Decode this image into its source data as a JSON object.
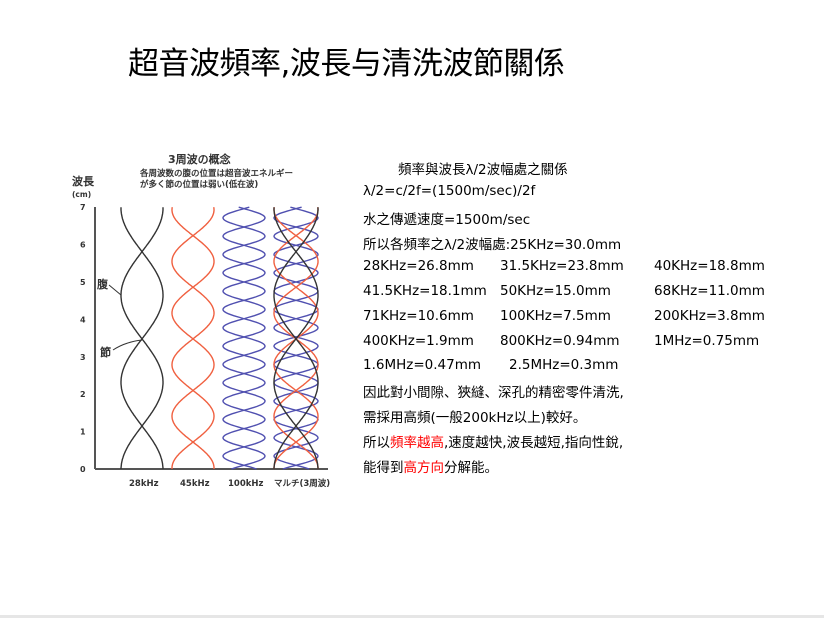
{
  "title": "超音波頻率,波長与清洗波節關係",
  "diagram": {
    "heading": "3周波の概念",
    "sub1": "各周波数の腹の位置は超音波エネルギー",
    "sub2": "が多く節の位置は弱い(低在波)",
    "ylabel": "波長",
    "yunit": "(cm)",
    "yticks": [
      "0",
      "1",
      "2",
      "3",
      "4",
      "5",
      "6",
      "7"
    ],
    "columns": [
      "28kHz",
      "45kHz",
      "100kHz",
      "マルチ(3周波)"
    ],
    "antinode_label": "腹",
    "node_label": "節",
    "colors": {
      "28kHz": "#333333",
      "45kHz": "#f06040",
      "100kHz": "#5050b0"
    }
  },
  "text": {
    "heading": "頻率與波長λ/2波幅處之關係",
    "formula": "λ/2=c/2f=(1500m/sec)/2f",
    "speed": "水之傳遞速度=1500m/sec",
    "intro": "所以各頻率之λ/2波幅處:25KHz=30.0mm",
    "rows": [
      [
        "28KHz=26.8mm",
        "31.5KHz=23.8mm",
        "40KHz=18.8mm"
      ],
      [
        "41.5KHz=18.1mm",
        "50KHz=15.0mm",
        "68KHz=11.0mm"
      ],
      [
        "71KHz=10.6mm",
        "100KHz=7.5mm",
        "200KHz=3.8mm"
      ],
      [
        "400KHz=1.9mm",
        "800KHz=0.94mm",
        "1MHz=0.75mm"
      ],
      [
        "1.6MHz=0.47mm",
        "2.5MHz=0.3mm"
      ]
    ],
    "p1": "因此對小間隙、狹縫、深孔的精密零件清洗,",
    "p2": "需採用高頻(一般200kHz以上)較好。",
    "p3a": "所以",
    "p3b": "頻率越高",
    "p3c": ",速度越快,波長越短,指向性銳,",
    "p4a": "能得到",
    "p4b": "高方向",
    "p4c": "分解能。"
  }
}
